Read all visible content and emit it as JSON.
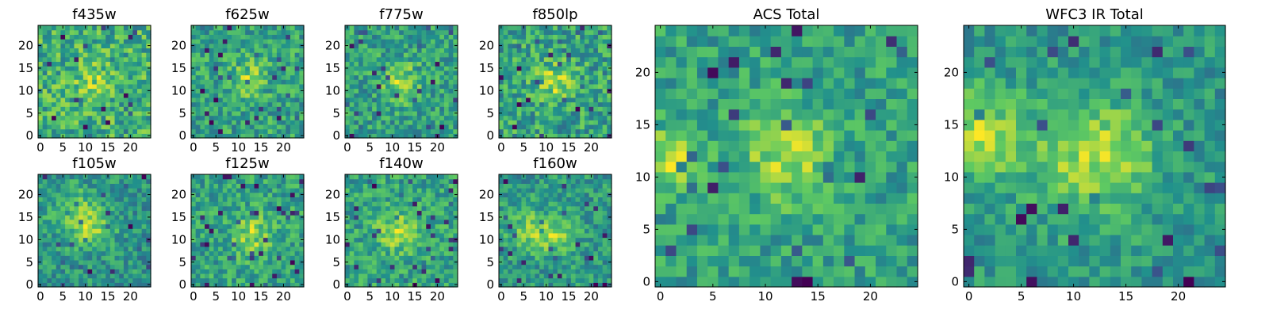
{
  "colormap": [
    "#440154",
    "#3b528b",
    "#21918c",
    "#5ec962",
    "#fde725"
  ],
  "chart_data": [
    {
      "type": "heatmap",
      "title": "f435w",
      "grid": [
        25,
        25
      ],
      "xlim": [
        0,
        24
      ],
      "ylim": [
        0,
        24
      ],
      "xticks": [
        0,
        5,
        10,
        15,
        20
      ],
      "yticks": [
        0,
        5,
        10,
        15,
        20
      ],
      "seed": 11,
      "noise": 0.55,
      "blob_amp": 0.25,
      "blobs": [
        [
          12,
          12,
          3
        ]
      ]
    },
    {
      "type": "heatmap",
      "title": "f625w",
      "grid": [
        25,
        25
      ],
      "xlim": [
        0,
        24
      ],
      "ylim": [
        0,
        24
      ],
      "xticks": [
        0,
        5,
        10,
        15,
        20
      ],
      "yticks": [
        0,
        5,
        10,
        15,
        20
      ],
      "seed": 23,
      "noise": 0.5,
      "blob_amp": 0.35,
      "blobs": [
        [
          12,
          13,
          3
        ]
      ]
    },
    {
      "type": "heatmap",
      "title": "f775w",
      "grid": [
        25,
        25
      ],
      "xlim": [
        0,
        24
      ],
      "ylim": [
        0,
        24
      ],
      "xticks": [
        0,
        5,
        10,
        15,
        20
      ],
      "yticks": [
        0,
        5,
        10,
        15,
        20
      ],
      "seed": 37,
      "noise": 0.5,
      "blob_amp": 0.4,
      "blobs": [
        [
          12,
          12,
          3
        ]
      ]
    },
    {
      "type": "heatmap",
      "title": "f850lp",
      "grid": [
        25,
        25
      ],
      "xlim": [
        0,
        24
      ],
      "ylim": [
        0,
        24
      ],
      "xticks": [
        0,
        5,
        10,
        15,
        20
      ],
      "yticks": [
        0,
        5,
        10,
        15,
        20
      ],
      "seed": 41,
      "noise": 0.5,
      "blob_amp": 0.35,
      "blobs": [
        [
          12,
          12,
          3
        ]
      ]
    },
    {
      "type": "heatmap",
      "title": "f105w",
      "grid": [
        25,
        25
      ],
      "xlim": [
        0,
        24
      ],
      "ylim": [
        0,
        24
      ],
      "xticks": [
        0,
        5,
        10,
        15,
        20
      ],
      "yticks": [
        0,
        5,
        10,
        15,
        20
      ],
      "seed": 53,
      "noise": 0.45,
      "blob_amp": 0.35,
      "blobs": [
        [
          8,
          16,
          4
        ],
        [
          12,
          12,
          3
        ]
      ]
    },
    {
      "type": "heatmap",
      "title": "f125w",
      "grid": [
        25,
        25
      ],
      "xlim": [
        0,
        24
      ],
      "ylim": [
        0,
        24
      ],
      "xticks": [
        0,
        5,
        10,
        15,
        20
      ],
      "yticks": [
        0,
        5,
        10,
        15,
        20
      ],
      "seed": 67,
      "noise": 0.45,
      "blob_amp": 0.4,
      "blobs": [
        [
          13,
          11,
          3
        ]
      ]
    },
    {
      "type": "heatmap",
      "title": "f140w",
      "grid": [
        25,
        25
      ],
      "xlim": [
        0,
        24
      ],
      "ylim": [
        0,
        24
      ],
      "xticks": [
        0,
        5,
        10,
        15,
        20
      ],
      "yticks": [
        0,
        5,
        10,
        15,
        20
      ],
      "seed": 71,
      "noise": 0.45,
      "blob_amp": 0.4,
      "blobs": [
        [
          11,
          12,
          3
        ]
      ]
    },
    {
      "type": "heatmap",
      "title": "f160w",
      "grid": [
        25,
        25
      ],
      "xlim": [
        0,
        24
      ],
      "ylim": [
        0,
        24
      ],
      "xticks": [
        0,
        5,
        10,
        15,
        20
      ],
      "yticks": [
        0,
        5,
        10,
        15,
        20
      ],
      "seed": 83,
      "noise": 0.45,
      "blob_amp": 0.4,
      "blobs": [
        [
          6,
          12,
          3
        ],
        [
          12,
          11,
          3
        ]
      ]
    },
    {
      "type": "heatmap",
      "title": "ACS Total",
      "grid": [
        25,
        25
      ],
      "xlim": [
        0,
        24
      ],
      "ylim": [
        0,
        24
      ],
      "xticks": [
        0,
        5,
        10,
        15,
        20
      ],
      "yticks": [
        0,
        5,
        10,
        15,
        20
      ],
      "seed": 97,
      "noise": 0.4,
      "blob_amp": 0.45,
      "blobs": [
        [
          12,
          12,
          3
        ],
        [
          1,
          12,
          2
        ]
      ]
    },
    {
      "type": "heatmap",
      "title": "WFC3 IR Total",
      "grid": [
        25,
        25
      ],
      "xlim": [
        0,
        24
      ],
      "ylim": [
        0,
        24
      ],
      "xticks": [
        0,
        5,
        10,
        15,
        20
      ],
      "yticks": [
        0,
        5,
        10,
        15,
        20
      ],
      "seed": 101,
      "noise": 0.35,
      "blob_amp": 0.5,
      "blobs": [
        [
          12,
          12,
          4
        ],
        [
          1,
          14,
          3
        ]
      ]
    }
  ]
}
